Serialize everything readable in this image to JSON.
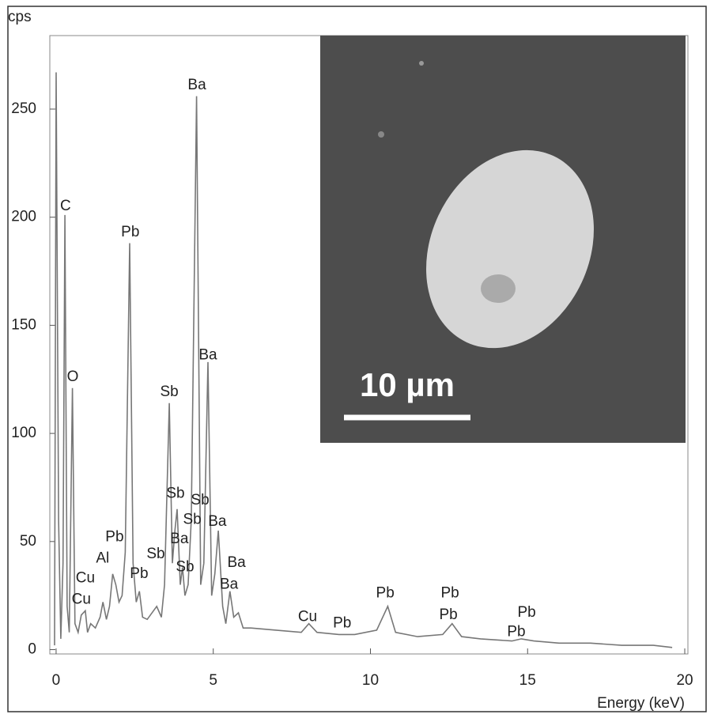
{
  "chart_data": {
    "type": "line",
    "y_label": "cps",
    "x_label": "Energy (keV)",
    "xlim": [
      -0.2,
      20.1
    ],
    "ylim": [
      -2,
      284
    ],
    "xticks": [
      0,
      5,
      10,
      15,
      20
    ],
    "yticks": [
      0,
      50,
      100,
      150,
      200,
      250
    ],
    "color": "#777777",
    "x": [
      -0.05,
      0,
      0.08,
      0.15,
      0.22,
      0.28,
      0.35,
      0.42,
      0.52,
      0.6,
      0.7,
      0.8,
      0.93,
      1.0,
      1.1,
      1.25,
      1.4,
      1.49,
      1.6,
      1.7,
      1.8,
      1.9,
      2.0,
      2.1,
      2.2,
      2.34,
      2.45,
      2.55,
      2.65,
      2.75,
      2.9,
      3.1,
      3.2,
      3.35,
      3.45,
      3.6,
      3.7,
      3.78,
      3.85,
      3.95,
      4.02,
      4.1,
      4.2,
      4.3,
      4.47,
      4.6,
      4.7,
      4.83,
      4.95,
      5.05,
      5.16,
      5.3,
      5.4,
      5.53,
      5.65,
      5.8,
      5.95,
      6.2,
      7,
      7.8,
      8.04,
      8.3,
      9,
      9.5,
      10.2,
      10.55,
      10.8,
      11.5,
      12.3,
      12.6,
      12.9,
      13.5,
      14.5,
      14.8,
      15.2,
      16,
      17,
      18,
      19,
      19.6
    ],
    "values": [
      2,
      267,
      60,
      5,
      40,
      201,
      20,
      8,
      121,
      12,
      8,
      16,
      18,
      8,
      12,
      10,
      15,
      22,
      14,
      20,
      35,
      30,
      22,
      25,
      45,
      188,
      40,
      22,
      27,
      15,
      14,
      18,
      20,
      15,
      30,
      114,
      40,
      55,
      65,
      30,
      38,
      25,
      30,
      60,
      256,
      30,
      40,
      133,
      25,
      35,
      55,
      20,
      12,
      27,
      15,
      17,
      10,
      10,
      9,
      8,
      12,
      8,
      7,
      7,
      9,
      20,
      8,
      6,
      7,
      12,
      6,
      5,
      4,
      5,
      4,
      3,
      3,
      2,
      2,
      1
    ],
    "annotations": [
      {
        "text": "C",
        "x": 0.3,
        "y": 205
      },
      {
        "text": "O",
        "x": 0.53,
        "y": 126
      },
      {
        "text": "Pb",
        "x": 2.36,
        "y": 193
      },
      {
        "text": "Ba",
        "x": 4.48,
        "y": 261
      },
      {
        "text": "Ba",
        "x": 4.83,
        "y": 136
      },
      {
        "text": "Sb",
        "x": 3.6,
        "y": 119
      },
      {
        "text": "Sb",
        "x": 3.8,
        "y": 72
      },
      {
        "text": "Sb",
        "x": 4.58,
        "y": 69
      },
      {
        "text": "Sb",
        "x": 4.33,
        "y": 60
      },
      {
        "text": "Ba",
        "x": 5.13,
        "y": 59
      },
      {
        "text": "Ba",
        "x": 3.92,
        "y": 51
      },
      {
        "text": "Sb",
        "x": 3.17,
        "y": 44
      },
      {
        "text": "Sb",
        "x": 4.1,
        "y": 38
      },
      {
        "text": "Ba",
        "x": 5.74,
        "y": 40
      },
      {
        "text": "Ba",
        "x": 5.5,
        "y": 30
      },
      {
        "text": "Pb",
        "x": 1.86,
        "y": 52
      },
      {
        "text": "Al",
        "x": 1.48,
        "y": 42
      },
      {
        "text": "Pb",
        "x": 2.64,
        "y": 35
      },
      {
        "text": "Cu",
        "x": 0.93,
        "y": 33
      },
      {
        "text": "Cu",
        "x": 0.8,
        "y": 23
      },
      {
        "text": "Cu",
        "x": 8.0,
        "y": 15
      },
      {
        "text": "Pb",
        "x": 9.1,
        "y": 12
      },
      {
        "text": "Pb",
        "x": 10.47,
        "y": 26
      },
      {
        "text": "Pb",
        "x": 12.53,
        "y": 26
      },
      {
        "text": "Pb",
        "x": 12.48,
        "y": 16
      },
      {
        "text": "Pb",
        "x": 14.97,
        "y": 17
      },
      {
        "text": "Pb",
        "x": 14.64,
        "y": 8
      }
    ],
    "inset_label": "10 µm"
  }
}
